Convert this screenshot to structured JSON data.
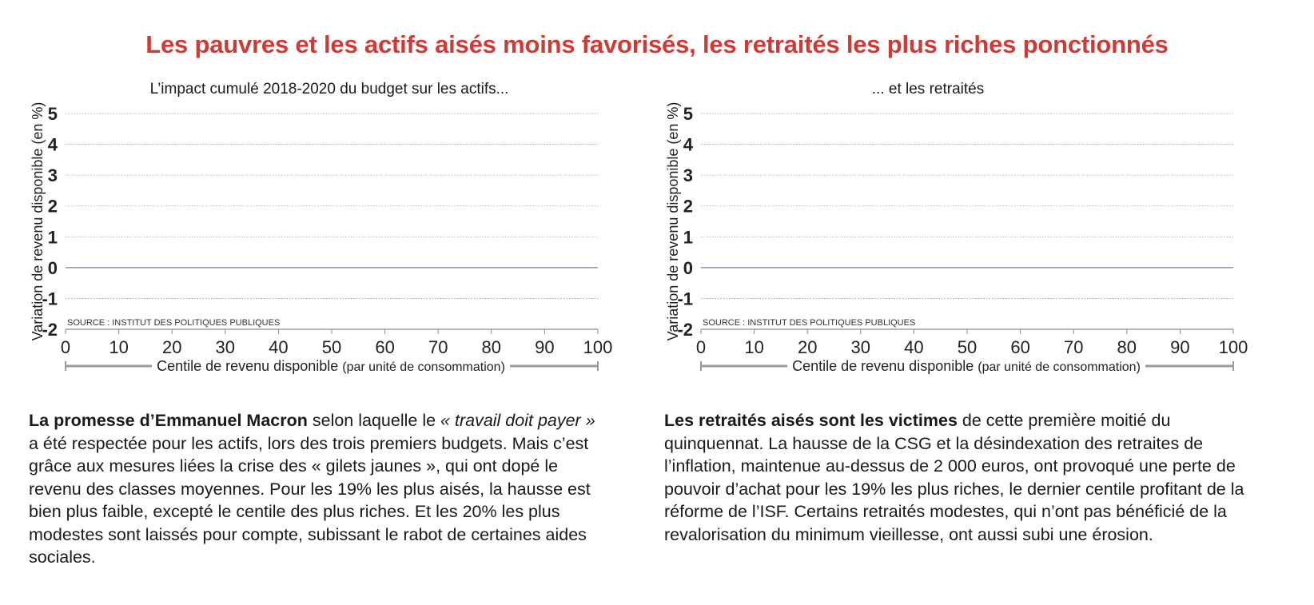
{
  "headline": "Les pauvres et les actifs aisés moins favorisés, les retraités les plus riches ponctionnés",
  "chart_data": [
    {
      "type": "line",
      "title": "L’impact cumulé 2018-2020 du budget sur les actifs...",
      "ylabel": "Variation de revenu disponible (en %)",
      "xlabel": "Centile de revenu disponible",
      "xlabel_note": "(par unité de consommation)",
      "source": "SOURCE : INSTITUT DES POLITIQUES PUBLIQUES",
      "xlim": [
        0,
        100
      ],
      "ylim": [
        -2,
        5
      ],
      "xticks": [
        0,
        10,
        20,
        30,
        40,
        50,
        60,
        70,
        80,
        90,
        100
      ],
      "yticks": [
        -2,
        -1,
        0,
        1,
        2,
        3,
        4,
        5
      ],
      "grid": true,
      "series": []
    },
    {
      "type": "line",
      "title": "... et les retraités",
      "ylabel": "Variation de revenu disponible (en %)",
      "xlabel": "Centile de revenu disponible",
      "xlabel_note": "(par unité de consommation)",
      "source": "SOURCE : INSTITUT DES POLITIQUES PUBLIQUES",
      "xlim": [
        0,
        100
      ],
      "ylim": [
        -2,
        5
      ],
      "xticks": [
        0,
        10,
        20,
        30,
        40,
        50,
        60,
        70,
        80,
        90,
        100
      ],
      "yticks": [
        -2,
        -1,
        0,
        1,
        2,
        3,
        4,
        5
      ],
      "grid": true,
      "series": []
    }
  ],
  "text_left": {
    "lead": "La promesse d’Emmanuel Macron",
    "part1": " selon laquelle le ",
    "quote": "« travail doit payer »",
    "part2": " a été respectée pour les actifs, lors des trois premiers budgets. Mais c’est grâce aux mesures liées la crise des « gilets jaunes », qui ont dopé le revenu des classes moyennes. Pour les 19% les plus aisés, la hausse est bien plus faible, excepté le centile des plus riches. Et les 20% les plus modestes sont laissés pour compte, subissant le rabot de certaines aides sociales."
  },
  "text_right": {
    "lead": "Les retraités aisés sont les victimes",
    "rest": " de cette première moitié du quinquennat. La hausse de la CSG et la désindexation des retraites de l’inflation, maintenue au-dessus de 2 000 euros, ont provoqué une perte de pouvoir d’achat pour les 19% les plus riches, le dernier centile profitant de la réforme de l’ISF. Certains retraités modestes, qui n’ont pas bénéficié de la revalorisation du minimum vieillesse, ont aussi subi une érosion."
  },
  "colors": {
    "headline": "#d03a34",
    "grid": "#9a9a9a",
    "zero_line": "#9aa0ae",
    "axis": "#8a8a8a"
  }
}
